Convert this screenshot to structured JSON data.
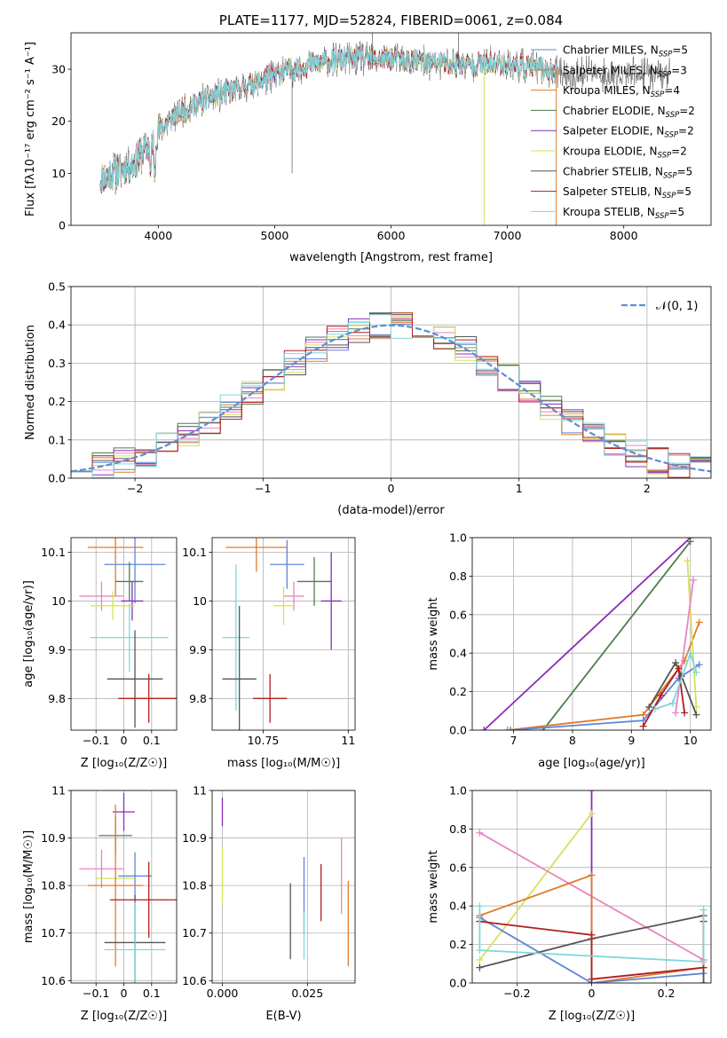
{
  "colors": {
    "chabrier_miles": "#5f86d6",
    "salpeter_miles": "#e07b2c",
    "kroupa_miles": "#4f7d4f",
    "chabrier_elodie": "#8c2db4",
    "salpeter_elodie": "#ea84c1",
    "kroupa_elodie": "#d4e25a",
    "chabrier_stelib": "#555555",
    "salpeter_stelib": "#b11d1d",
    "kroupa_stelib": "#7ed7dd",
    "gaussian": "#5b8dd6",
    "grid": "#b0b0b0"
  },
  "chart_data": [
    {
      "id": "spectrum",
      "type": "line",
      "title": "PLATE=1177, MJD=52824, FIBERID=0061, z=0.084",
      "xlabel": "wavelength [Angstrom, rest frame]",
      "ylabel": "Flux [fλ10⁻¹⁷ erg cm⁻² s⁻¹ A⁻¹]",
      "xlim": [
        3250,
        8750
      ],
      "ylim": [
        0,
        37
      ],
      "xticks": [
        4000,
        5000,
        6000,
        7000,
        8000
      ],
      "yticks": [
        0,
        10,
        20,
        30
      ],
      "grid": false,
      "legend_position": "right",
      "legend": [
        {
          "label": "Chabrier MILES, N",
          "sub": "SSP",
          "eq": "=5",
          "color_key": "chabrier_miles"
        },
        {
          "label": "Salpeter MILES, N",
          "sub": "SSP",
          "eq": "=3",
          "color_key": "salpeter_miles"
        },
        {
          "label": "Kroupa MILES, N",
          "sub": "SSP",
          "eq": "=4",
          "color_key": "salpeter_miles"
        },
        {
          "label": "Chabrier ELODIE, N",
          "sub": "SSP",
          "eq": "=2",
          "color_key": "kroupa_miles"
        },
        {
          "label": "Salpeter ELODIE, N",
          "sub": "SSP",
          "eq": "=2",
          "color_key": "chabrier_elodie"
        },
        {
          "label": "Kroupa ELODIE, N",
          "sub": "SSP",
          "eq": "=2",
          "color_key": "kroupa_elodie"
        },
        {
          "label": "Chabrier STELIB, N",
          "sub": "SSP",
          "eq": "=5",
          "color_key": "chabrier_stelib"
        },
        {
          "label": "Salpeter STELIB, N",
          "sub": "SSP",
          "eq": "=5",
          "color_key": "salpeter_stelib"
        },
        {
          "label": "Kroupa STELIB, N",
          "sub": "SSP",
          "eq": "=5",
          "color_key": "kroupa_stelib"
        }
      ],
      "continuum": [
        [
          3500,
          9
        ],
        [
          3800,
          12
        ],
        [
          4000,
          18
        ],
        [
          4200,
          22
        ],
        [
          4500,
          25
        ],
        [
          4800,
          27
        ],
        [
          5000,
          29
        ],
        [
          5300,
          31
        ],
        [
          5600,
          32
        ],
        [
          6000,
          32
        ],
        [
          6500,
          31
        ],
        [
          7000,
          31
        ],
        [
          7300,
          30
        ],
        [
          7500,
          29
        ]
      ],
      "model_x_range": [
        3500,
        8400
      ],
      "model_cut_x": 7420
    },
    {
      "id": "residuals",
      "type": "histogram",
      "xlabel": "(data-model)/error",
      "ylabel": "Normed distribution",
      "xlim": [
        -2.5,
        2.5
      ],
      "ylim": [
        0,
        0.5
      ],
      "xticks": [
        -2,
        -1,
        0,
        1,
        2
      ],
      "yticks": [
        0.0,
        0.1,
        0.2,
        0.3,
        0.4,
        0.5
      ],
      "grid": true,
      "bins": 30,
      "legend_position": "top-right",
      "legend_label": "𝒩(0, 1)"
    },
    {
      "id": "age_vs_Z",
      "type": "scatter",
      "xlabel": "Z [log₁₀(Z/Z☉)]",
      "ylabel": "age  [log₁₀(age/yr)]",
      "xlim": [
        -0.19,
        0.19
      ],
      "ylim": [
        9.735,
        10.13
      ],
      "xticks": [
        -0.1,
        0.0,
        0.1
      ],
      "yticks": [
        9.8,
        9.9,
        10.0,
        10.1
      ],
      "grid": true,
      "points": [
        {
          "key": "salpeter_miles",
          "x": -0.03,
          "xerr": 0.1,
          "y": 10.11,
          "yerr": 0.1
        },
        {
          "key": "chabrier_miles",
          "x": 0.04,
          "xerr": 0.11,
          "y": 10.075,
          "yerr": 0.08
        },
        {
          "key": "kroupa_miles",
          "x": 0.02,
          "xerr": 0.05,
          "y": 10.04,
          "yerr": 0.04
        },
        {
          "key": "salpeter_elodie",
          "x": -0.08,
          "xerr": 0.08,
          "y": 10.01,
          "yerr": 0.03
        },
        {
          "key": "chabrier_elodie",
          "x": 0.03,
          "xerr": 0.04,
          "y": 10.0,
          "yerr": 0.04
        },
        {
          "key": "kroupa_elodie",
          "x": -0.04,
          "xerr": 0.08,
          "y": 9.99,
          "yerr": 0.03
        },
        {
          "key": "kroupa_stelib",
          "x": 0.02,
          "xerr": 0.14,
          "y": 9.925,
          "yerr": 0.07
        },
        {
          "key": "chabrier_stelib",
          "x": 0.04,
          "xerr": 0.1,
          "y": 9.84,
          "yerr": 0.1
        },
        {
          "key": "salpeter_stelib",
          "x": 0.09,
          "xerr": 0.11,
          "y": 9.8,
          "yerr": 0.05
        }
      ]
    },
    {
      "id": "age_vs_mass",
      "type": "scatter",
      "xlabel": "mass [log₁₀(M/M☉)]",
      "ylabel": "",
      "xlim": [
        10.6,
        11.02
      ],
      "ylim": [
        9.735,
        10.13
      ],
      "xticks": [
        10.75,
        11.0
      ],
      "yticks": [
        9.8,
        9.9,
        10.0,
        10.1
      ],
      "grid": true,
      "points": [
        {
          "key": "salpeter_miles",
          "x": 10.73,
          "xerr": 0.09,
          "y": 10.11,
          "yerr": 0.05
        },
        {
          "key": "chabrier_miles",
          "x": 10.82,
          "xerr": 0.05,
          "y": 10.075,
          "yerr": 0.05
        },
        {
          "key": "kroupa_miles",
          "x": 10.9,
          "xerr": 0.05,
          "y": 10.04,
          "yerr": 0.05
        },
        {
          "key": "salpeter_elodie",
          "x": 10.84,
          "xerr": 0.03,
          "y": 10.01,
          "yerr": 0.03
        },
        {
          "key": "chabrier_elodie",
          "x": 10.95,
          "xerr": 0.03,
          "y": 10.0,
          "yerr": 0.1
        },
        {
          "key": "kroupa_elodie",
          "x": 10.81,
          "xerr": 0.03,
          "y": 9.99,
          "yerr": 0.04
        },
        {
          "key": "kroupa_stelib",
          "x": 10.67,
          "xerr": 0.04,
          "y": 9.925,
          "yerr": 0.15
        },
        {
          "key": "chabrier_stelib",
          "x": 10.68,
          "xerr": 0.05,
          "y": 9.84,
          "yerr": 0.15
        },
        {
          "key": "salpeter_stelib",
          "x": 10.77,
          "xerr": 0.05,
          "y": 9.8,
          "yerr": 0.05
        }
      ]
    },
    {
      "id": "weight_vs_age",
      "type": "line",
      "xlabel": "age  [log₁₀(age/yr)]",
      "ylabel": "mass weight",
      "xlim": [
        6.3,
        10.35
      ],
      "ylim": [
        0,
        1
      ],
      "xticks": [
        7,
        8,
        9,
        10
      ],
      "yticks": [
        0.0,
        0.2,
        0.4,
        0.6,
        0.8,
        1.0
      ],
      "grid": true,
      "series": [
        {
          "key": "chabrier_elodie",
          "x": [
            6.5,
            10.0
          ],
          "y": [
            0.0,
            1.0
          ]
        },
        {
          "key": "kroupa_miles",
          "x": [
            7.5,
            10.0
          ],
          "y": [
            0.0,
            0.98
          ]
        },
        {
          "key": "salpeter_miles",
          "x": [
            6.9,
            9.2,
            9.9,
            10.15
          ],
          "y": [
            0.0,
            0.08,
            0.36,
            0.56
          ]
        },
        {
          "key": "chabrier_miles",
          "x": [
            6.95,
            9.2,
            9.8,
            10.15
          ],
          "y": [
            0.0,
            0.05,
            0.27,
            0.34
          ]
        },
        {
          "key": "kroupa_elodie",
          "x": [
            9.95,
            10.1
          ],
          "y": [
            0.88,
            0.12
          ]
        },
        {
          "key": "salpeter_elodie",
          "x": [
            9.75,
            10.05
          ],
          "y": [
            0.09,
            0.78
          ]
        },
        {
          "key": "chabrier_stelib",
          "x": [
            9.3,
            9.75,
            9.85,
            10.1
          ],
          "y": [
            0.12,
            0.35,
            0.28,
            0.08
          ]
        },
        {
          "key": "salpeter_stelib",
          "x": [
            9.2,
            9.5,
            9.8,
            9.9
          ],
          "y": [
            0.02,
            0.18,
            0.32,
            0.09
          ]
        },
        {
          "key": "kroupa_stelib",
          "x": [
            9.4,
            9.7,
            10.0,
            10.1
          ],
          "y": [
            0.11,
            0.14,
            0.4,
            0.3
          ]
        }
      ]
    },
    {
      "id": "mass_vs_Z",
      "type": "scatter",
      "xlabel": "Z [log₁₀(Z/Z☉)]",
      "ylabel": "mass [log₁₀(M/M☉)]",
      "xlim": [
        -0.19,
        0.19
      ],
      "ylim": [
        10.595,
        11.0
      ],
      "xticks": [
        -0.1,
        0.0,
        0.1
      ],
      "yticks": [
        10.6,
        10.7,
        10.8,
        10.9,
        11.0
      ],
      "grid": true,
      "points": [
        {
          "key": "chabrier_elodie",
          "x": 0.0,
          "xerr": 0.04,
          "y": 10.955,
          "yerr": 0.04
        },
        {
          "key": "kroupa_miles",
          "x": -0.03,
          "xerr": 0.06,
          "y": 10.905,
          "yerr": 0.04
        },
        {
          "key": "salpeter_elodie",
          "x": -0.08,
          "xerr": 0.08,
          "y": 10.835,
          "yerr": 0.04
        },
        {
          "key": "chabrier_miles",
          "x": 0.04,
          "xerr": 0.06,
          "y": 10.82,
          "yerr": 0.05
        },
        {
          "key": "kroupa_elodie",
          "x": -0.03,
          "xerr": 0.07,
          "y": 10.815,
          "yerr": 0.02
        },
        {
          "key": "salpeter_miles",
          "x": -0.03,
          "xerr": 0.1,
          "y": 10.8,
          "yerr": 0.17
        },
        {
          "key": "salpeter_stelib",
          "x": 0.09,
          "xerr": 0.14,
          "y": 10.77,
          "yerr": 0.08
        },
        {
          "key": "chabrier_stelib",
          "x": 0.04,
          "xerr": 0.11,
          "y": 10.68,
          "yerr": 0.1
        },
        {
          "key": "kroupa_stelib",
          "x": 0.04,
          "xerr": 0.11,
          "y": 10.665,
          "yerr": 0.1
        }
      ]
    },
    {
      "id": "mass_vs_EBV",
      "type": "scatter",
      "xlabel": "E(B-V)",
      "ylabel": "",
      "xlim": [
        -0.003,
        0.039
      ],
      "ylim": [
        10.595,
        11.0
      ],
      "xticks": [
        0.0,
        0.025
      ],
      "xtick_labels": [
        "0.000",
        "0.025"
      ],
      "yticks": [
        10.6,
        10.7,
        10.8,
        10.9,
        11.0
      ],
      "grid": true,
      "points": [
        {
          "key": "chabrier_elodie",
          "x": 0.0,
          "xerr": 0,
          "y": 10.955,
          "yerr": 0.03
        },
        {
          "key": "kroupa_elodie",
          "x": 0.0,
          "xerr": 0,
          "y": 10.82,
          "yerr": 0.06
        },
        {
          "key": "chabrier_stelib",
          "x": 0.02,
          "xerr": 0,
          "y": 10.725,
          "yerr": 0.08
        },
        {
          "key": "chabrier_miles",
          "x": 0.024,
          "xerr": 0,
          "y": 10.78,
          "yerr": 0.08
        },
        {
          "key": "kroupa_stelib",
          "x": 0.024,
          "xerr": 0,
          "y": 10.695,
          "yerr": 0.05
        },
        {
          "key": "salpeter_stelib",
          "x": 0.029,
          "xerr": 0,
          "y": 10.785,
          "yerr": 0.06
        },
        {
          "key": "salpeter_elodie",
          "x": 0.035,
          "xerr": 0,
          "y": 10.82,
          "yerr": 0.08
        },
        {
          "key": "salpeter_miles",
          "x": 0.037,
          "xerr": 0,
          "y": 10.72,
          "yerr": 0.09
        }
      ]
    },
    {
      "id": "weight_vs_Z",
      "type": "line",
      "xlabel": "Z [log₁₀(Z/Z☉)]",
      "ylabel": "mass weight",
      "xlim": [
        -0.32,
        0.32
      ],
      "ylim": [
        0,
        1
      ],
      "xticks": [
        -0.2,
        0.0,
        0.2
      ],
      "yticks": [
        0.0,
        0.2,
        0.4,
        0.6,
        0.8,
        1.0
      ],
      "grid": true,
      "series": [
        {
          "key": "chabrier_elodie",
          "x": [
            0.0,
            0.0
          ],
          "y": [
            0.0,
            1.0
          ]
        },
        {
          "key": "kroupa_elodie",
          "x": [
            -0.3,
            0.0
          ],
          "y": [
            0.12,
            0.88
          ]
        },
        {
          "key": "salpeter_elodie",
          "x": [
            -0.3,
            0.3
          ],
          "y": [
            0.78,
            0.12
          ]
        },
        {
          "key": "salpeter_miles",
          "x": [
            -0.3,
            0.0,
            0.0,
            0.3
          ],
          "y": [
            0.35,
            0.56,
            0.0,
            0.08
          ]
        },
        {
          "key": "chabrier_miles",
          "x": [
            -0.3,
            0.0,
            0.0,
            0.3
          ],
          "y": [
            0.34,
            0.0,
            0.0,
            0.05
          ]
        },
        {
          "key": "chabrier_stelib",
          "x": [
            -0.3,
            0.0,
            0.3,
            0.3
          ],
          "y": [
            0.08,
            0.23,
            0.35,
            0.0
          ]
        },
        {
          "key": "salpeter_stelib",
          "x": [
            -0.3,
            0.0,
            0.0,
            0.3,
            0.3
          ],
          "y": [
            0.32,
            0.25,
            0.02,
            0.08,
            0.32
          ]
        },
        {
          "key": "kroupa_stelib",
          "x": [
            -0.3,
            -0.3,
            0.3,
            0.3
          ],
          "y": [
            0.4,
            0.17,
            0.11,
            0.38
          ]
        }
      ]
    }
  ]
}
